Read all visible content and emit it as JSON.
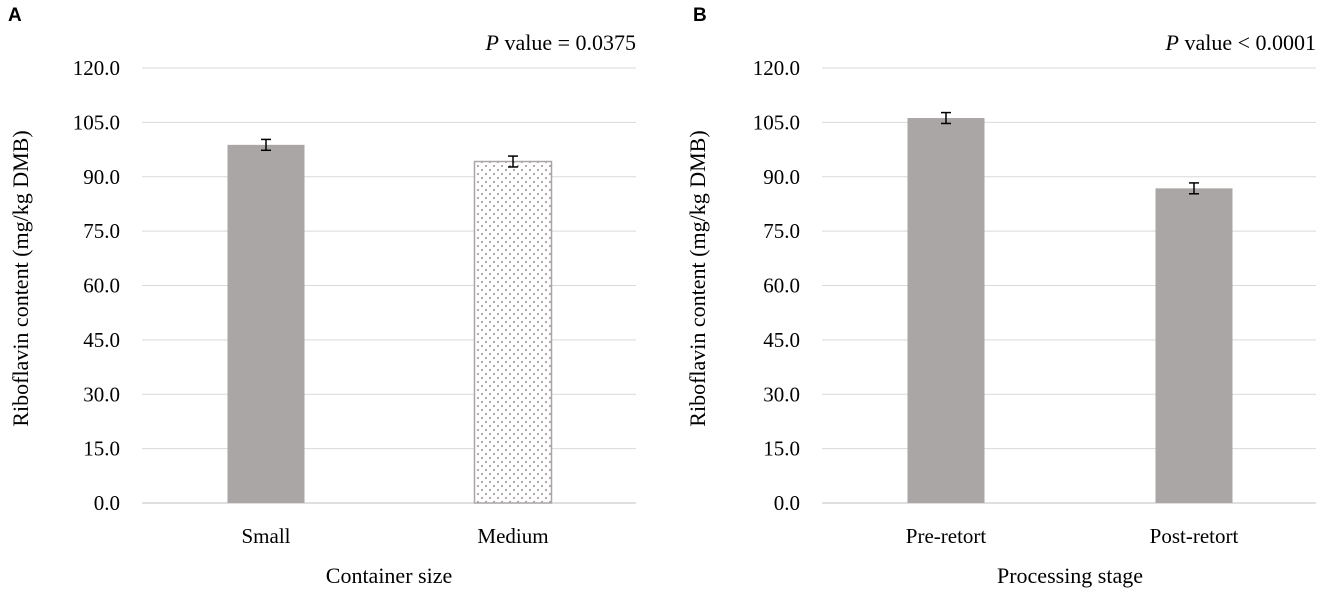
{
  "chart_data": [
    {
      "type": "bar",
      "panel": "A",
      "annotation": {
        "italic": "P",
        "text": " value = 0.0375"
      },
      "xlabel": "Container size",
      "ylabel": "Riboflavin content (mg/kg DMB)",
      "ylim": [
        0,
        120
      ],
      "yticks": [
        "0.0",
        "15.0",
        "30.0",
        "45.0",
        "60.0",
        "75.0",
        "90.0",
        "105.0",
        "120.0"
      ],
      "grid": true,
      "categories": [
        "Small",
        "Medium"
      ],
      "values": [
        98.8,
        94.2
      ],
      "errors": [
        1.5,
        1.5
      ],
      "fills": [
        "solid",
        "dotted"
      ],
      "colors": {
        "bar": "#aaa6a6",
        "dot": "#a7a3a3",
        "grid": "#d9d9d9"
      }
    },
    {
      "type": "bar",
      "panel": "B",
      "annotation": {
        "italic": "P",
        "text": " value < 0.0001"
      },
      "xlabel": "Processing stage",
      "ylabel": "Riboflavin content (mg/kg DMB)",
      "ylim": [
        0,
        120
      ],
      "yticks": [
        "0.0",
        "15.0",
        "30.0",
        "45.0",
        "60.0",
        "75.0",
        "90.0",
        "105.0",
        "120.0"
      ],
      "grid": true,
      "categories": [
        "Pre-retort",
        "Post-retort"
      ],
      "values": [
        106.2,
        86.8
      ],
      "errors": [
        1.5,
        1.5
      ],
      "fills": [
        "solid",
        "solid"
      ],
      "colors": {
        "bar": "#aaa6a6",
        "dot": "#a7a3a3",
        "grid": "#d9d9d9"
      }
    }
  ]
}
